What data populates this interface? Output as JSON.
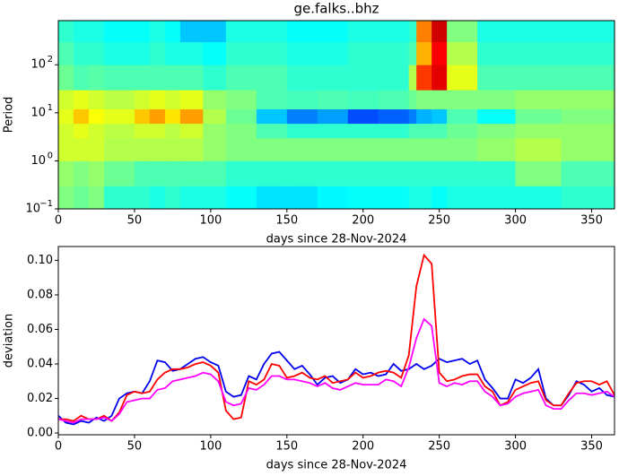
{
  "chart_data": [
    {
      "type": "heatmap",
      "title": "ge.falks..bhz",
      "x_label": "days since 28-Nov-2024",
      "y_label": "Period",
      "log_y": true,
      "colormap": "jet",
      "xlim": [
        0,
        365
      ],
      "xticks": [
        0,
        50,
        100,
        150,
        200,
        250,
        300,
        350
      ],
      "ylim": [
        0.1,
        830
      ],
      "yticks": [
        {
          "value": 0.1,
          "label": "10",
          "exponent": "−1"
        },
        {
          "value": 1,
          "label": "10",
          "exponent": "0"
        },
        {
          "value": 10,
          "label": "10",
          "exponent": "1"
        },
        {
          "value": 100,
          "label": "10",
          "exponent": "2"
        }
      ],
      "x_edges": [
        0,
        10,
        20,
        30,
        50,
        60,
        70,
        80,
        95,
        110,
        130,
        150,
        170,
        190,
        210,
        230,
        235,
        245,
        255,
        275,
        300,
        330,
        365
      ],
      "y_edges": [
        0.1,
        0.3,
        1,
        3,
        6,
        12,
        30,
        100,
        300,
        830
      ],
      "values": [
        [
          0.5,
          0.48,
          0.5,
          0.42,
          0.42,
          0.4,
          0.42,
          0.4,
          0.4,
          0.38,
          0.35,
          0.35,
          0.37,
          0.38,
          0.38,
          0.4,
          0.4,
          0.38,
          0.4,
          0.4,
          0.4,
          0.42
        ],
        [
          0.52,
          0.5,
          0.52,
          0.48,
          0.45,
          0.45,
          0.45,
          0.45,
          0.45,
          0.42,
          0.42,
          0.42,
          0.42,
          0.42,
          0.42,
          0.42,
          0.42,
          0.42,
          0.42,
          0.42,
          0.5,
          0.45
        ],
        [
          0.58,
          0.58,
          0.58,
          0.55,
          0.55,
          0.55,
          0.55,
          0.55,
          0.52,
          0.5,
          0.5,
          0.5,
          0.5,
          0.5,
          0.5,
          0.5,
          0.5,
          0.5,
          0.5,
          0.52,
          0.55,
          0.52
        ],
        [
          0.58,
          0.6,
          0.58,
          0.56,
          0.58,
          0.58,
          0.56,
          0.58,
          0.52,
          0.5,
          0.45,
          0.42,
          0.42,
          0.42,
          0.42,
          0.45,
          0.45,
          0.45,
          0.48,
          0.5,
          0.52,
          0.52
        ],
        [
          0.6,
          0.68,
          0.62,
          0.6,
          0.68,
          0.72,
          0.65,
          0.72,
          0.55,
          0.48,
          0.32,
          0.25,
          0.28,
          0.2,
          0.22,
          0.25,
          0.3,
          0.32,
          0.45,
          0.38,
          0.48,
          0.5
        ],
        [
          0.58,
          0.6,
          0.58,
          0.56,
          0.58,
          0.6,
          0.58,
          0.6,
          0.52,
          0.5,
          0.45,
          0.44,
          0.45,
          0.44,
          0.45,
          0.48,
          0.5,
          0.5,
          0.5,
          0.5,
          0.52,
          0.52
        ],
        [
          0.48,
          0.45,
          0.46,
          0.45,
          0.45,
          0.45,
          0.45,
          0.45,
          0.42,
          0.45,
          0.45,
          0.42,
          0.42,
          0.42,
          0.42,
          0.55,
          0.82,
          0.9,
          0.6,
          0.45,
          0.45,
          0.45
        ],
        [
          0.45,
          0.42,
          0.42,
          0.4,
          0.4,
          0.42,
          0.4,
          0.4,
          0.38,
          0.42,
          0.42,
          0.4,
          0.4,
          0.42,
          0.42,
          0.45,
          0.7,
          0.88,
          0.55,
          0.42,
          0.42,
          0.42
        ],
        [
          0.42,
          0.4,
          0.4,
          0.38,
          0.38,
          0.4,
          0.38,
          0.32,
          0.32,
          0.4,
          0.4,
          0.38,
          0.38,
          0.4,
          0.4,
          0.42,
          0.75,
          0.92,
          0.5,
          0.4,
          0.4,
          0.4
        ]
      ]
    },
    {
      "type": "line",
      "x_label": "days since 28-Nov-2024",
      "y_label": "deviation",
      "xlim": [
        0,
        365
      ],
      "xticks": [
        0,
        50,
        100,
        150,
        200,
        250,
        300,
        350
      ],
      "ylim": [
        -0.001,
        0.108
      ],
      "yticks": [
        {
          "value": 0,
          "label": "0.00"
        },
        {
          "value": 0.02,
          "label": "0.02"
        },
        {
          "value": 0.04,
          "label": "0.04"
        },
        {
          "value": 0.06,
          "label": "0.06"
        },
        {
          "value": 0.08,
          "label": "0.08"
        },
        {
          "value": 0.1,
          "label": "0.10"
        }
      ],
      "x": [
        0,
        5,
        10,
        15,
        20,
        25,
        30,
        35,
        40,
        45,
        50,
        55,
        60,
        65,
        70,
        75,
        80,
        85,
        90,
        95,
        100,
        105,
        110,
        115,
        120,
        125,
        130,
        135,
        140,
        145,
        150,
        155,
        160,
        165,
        170,
        175,
        180,
        185,
        190,
        195,
        200,
        205,
        210,
        215,
        220,
        225,
        230,
        235,
        240,
        245,
        250,
        255,
        260,
        265,
        270,
        275,
        280,
        285,
        290,
        295,
        300,
        305,
        310,
        315,
        320,
        325,
        330,
        335,
        340,
        345,
        350,
        355,
        360,
        365
      ],
      "series": [
        {
          "color": "#0000ee",
          "values": [
            0.01,
            0.006,
            0.005,
            0.007,
            0.006,
            0.009,
            0.007,
            0.01,
            0.02,
            0.023,
            0.024,
            0.023,
            0.03,
            0.042,
            0.041,
            0.036,
            0.037,
            0.04,
            0.043,
            0.044,
            0.041,
            0.039,
            0.024,
            0.021,
            0.022,
            0.033,
            0.031,
            0.04,
            0.046,
            0.047,
            0.042,
            0.037,
            0.039,
            0.034,
            0.028,
            0.032,
            0.033,
            0.029,
            0.031,
            0.037,
            0.034,
            0.035,
            0.033,
            0.034,
            0.04,
            0.036,
            0.037,
            0.04,
            0.037,
            0.039,
            0.043,
            0.041,
            0.042,
            0.043,
            0.04,
            0.042,
            0.031,
            0.026,
            0.02,
            0.02,
            0.031,
            0.029,
            0.032,
            0.037,
            0.02,
            0.016,
            0.016,
            0.022,
            0.03,
            0.028,
            0.024,
            0.026,
            0.022,
            0.021
          ]
        },
        {
          "color": "#ff0000",
          "values": [
            0.008,
            0.008,
            0.007,
            0.01,
            0.008,
            0.008,
            0.01,
            0.007,
            0.012,
            0.022,
            0.024,
            0.023,
            0.024,
            0.031,
            0.035,
            0.037,
            0.037,
            0.038,
            0.04,
            0.041,
            0.039,
            0.035,
            0.013,
            0.008,
            0.009,
            0.03,
            0.028,
            0.031,
            0.04,
            0.039,
            0.032,
            0.033,
            0.035,
            0.032,
            0.031,
            0.033,
            0.029,
            0.03,
            0.031,
            0.035,
            0.032,
            0.033,
            0.035,
            0.036,
            0.035,
            0.032,
            0.045,
            0.085,
            0.103,
            0.098,
            0.035,
            0.03,
            0.031,
            0.033,
            0.034,
            0.034,
            0.027,
            0.024,
            0.016,
            0.018,
            0.025,
            0.027,
            0.029,
            0.03,
            0.019,
            0.016,
            0.016,
            0.023,
            0.029,
            0.03,
            0.03,
            0.028,
            0.03,
            0.022
          ]
        },
        {
          "color": "#ff00ff",
          "values": [
            0.008,
            0.007,
            0.006,
            0.008,
            0.008,
            0.008,
            0.009,
            0.007,
            0.011,
            0.018,
            0.019,
            0.02,
            0.02,
            0.025,
            0.026,
            0.03,
            0.031,
            0.032,
            0.033,
            0.035,
            0.034,
            0.03,
            0.018,
            0.016,
            0.017,
            0.026,
            0.025,
            0.028,
            0.033,
            0.033,
            0.031,
            0.031,
            0.03,
            0.029,
            0.027,
            0.029,
            0.026,
            0.025,
            0.027,
            0.029,
            0.028,
            0.028,
            0.028,
            0.031,
            0.03,
            0.027,
            0.038,
            0.055,
            0.066,
            0.062,
            0.029,
            0.027,
            0.029,
            0.028,
            0.03,
            0.03,
            0.024,
            0.021,
            0.016,
            0.017,
            0.021,
            0.023,
            0.024,
            0.025,
            0.016,
            0.014,
            0.014,
            0.019,
            0.023,
            0.023,
            0.022,
            0.023,
            0.024,
            0.021
          ]
        }
      ]
    }
  ]
}
